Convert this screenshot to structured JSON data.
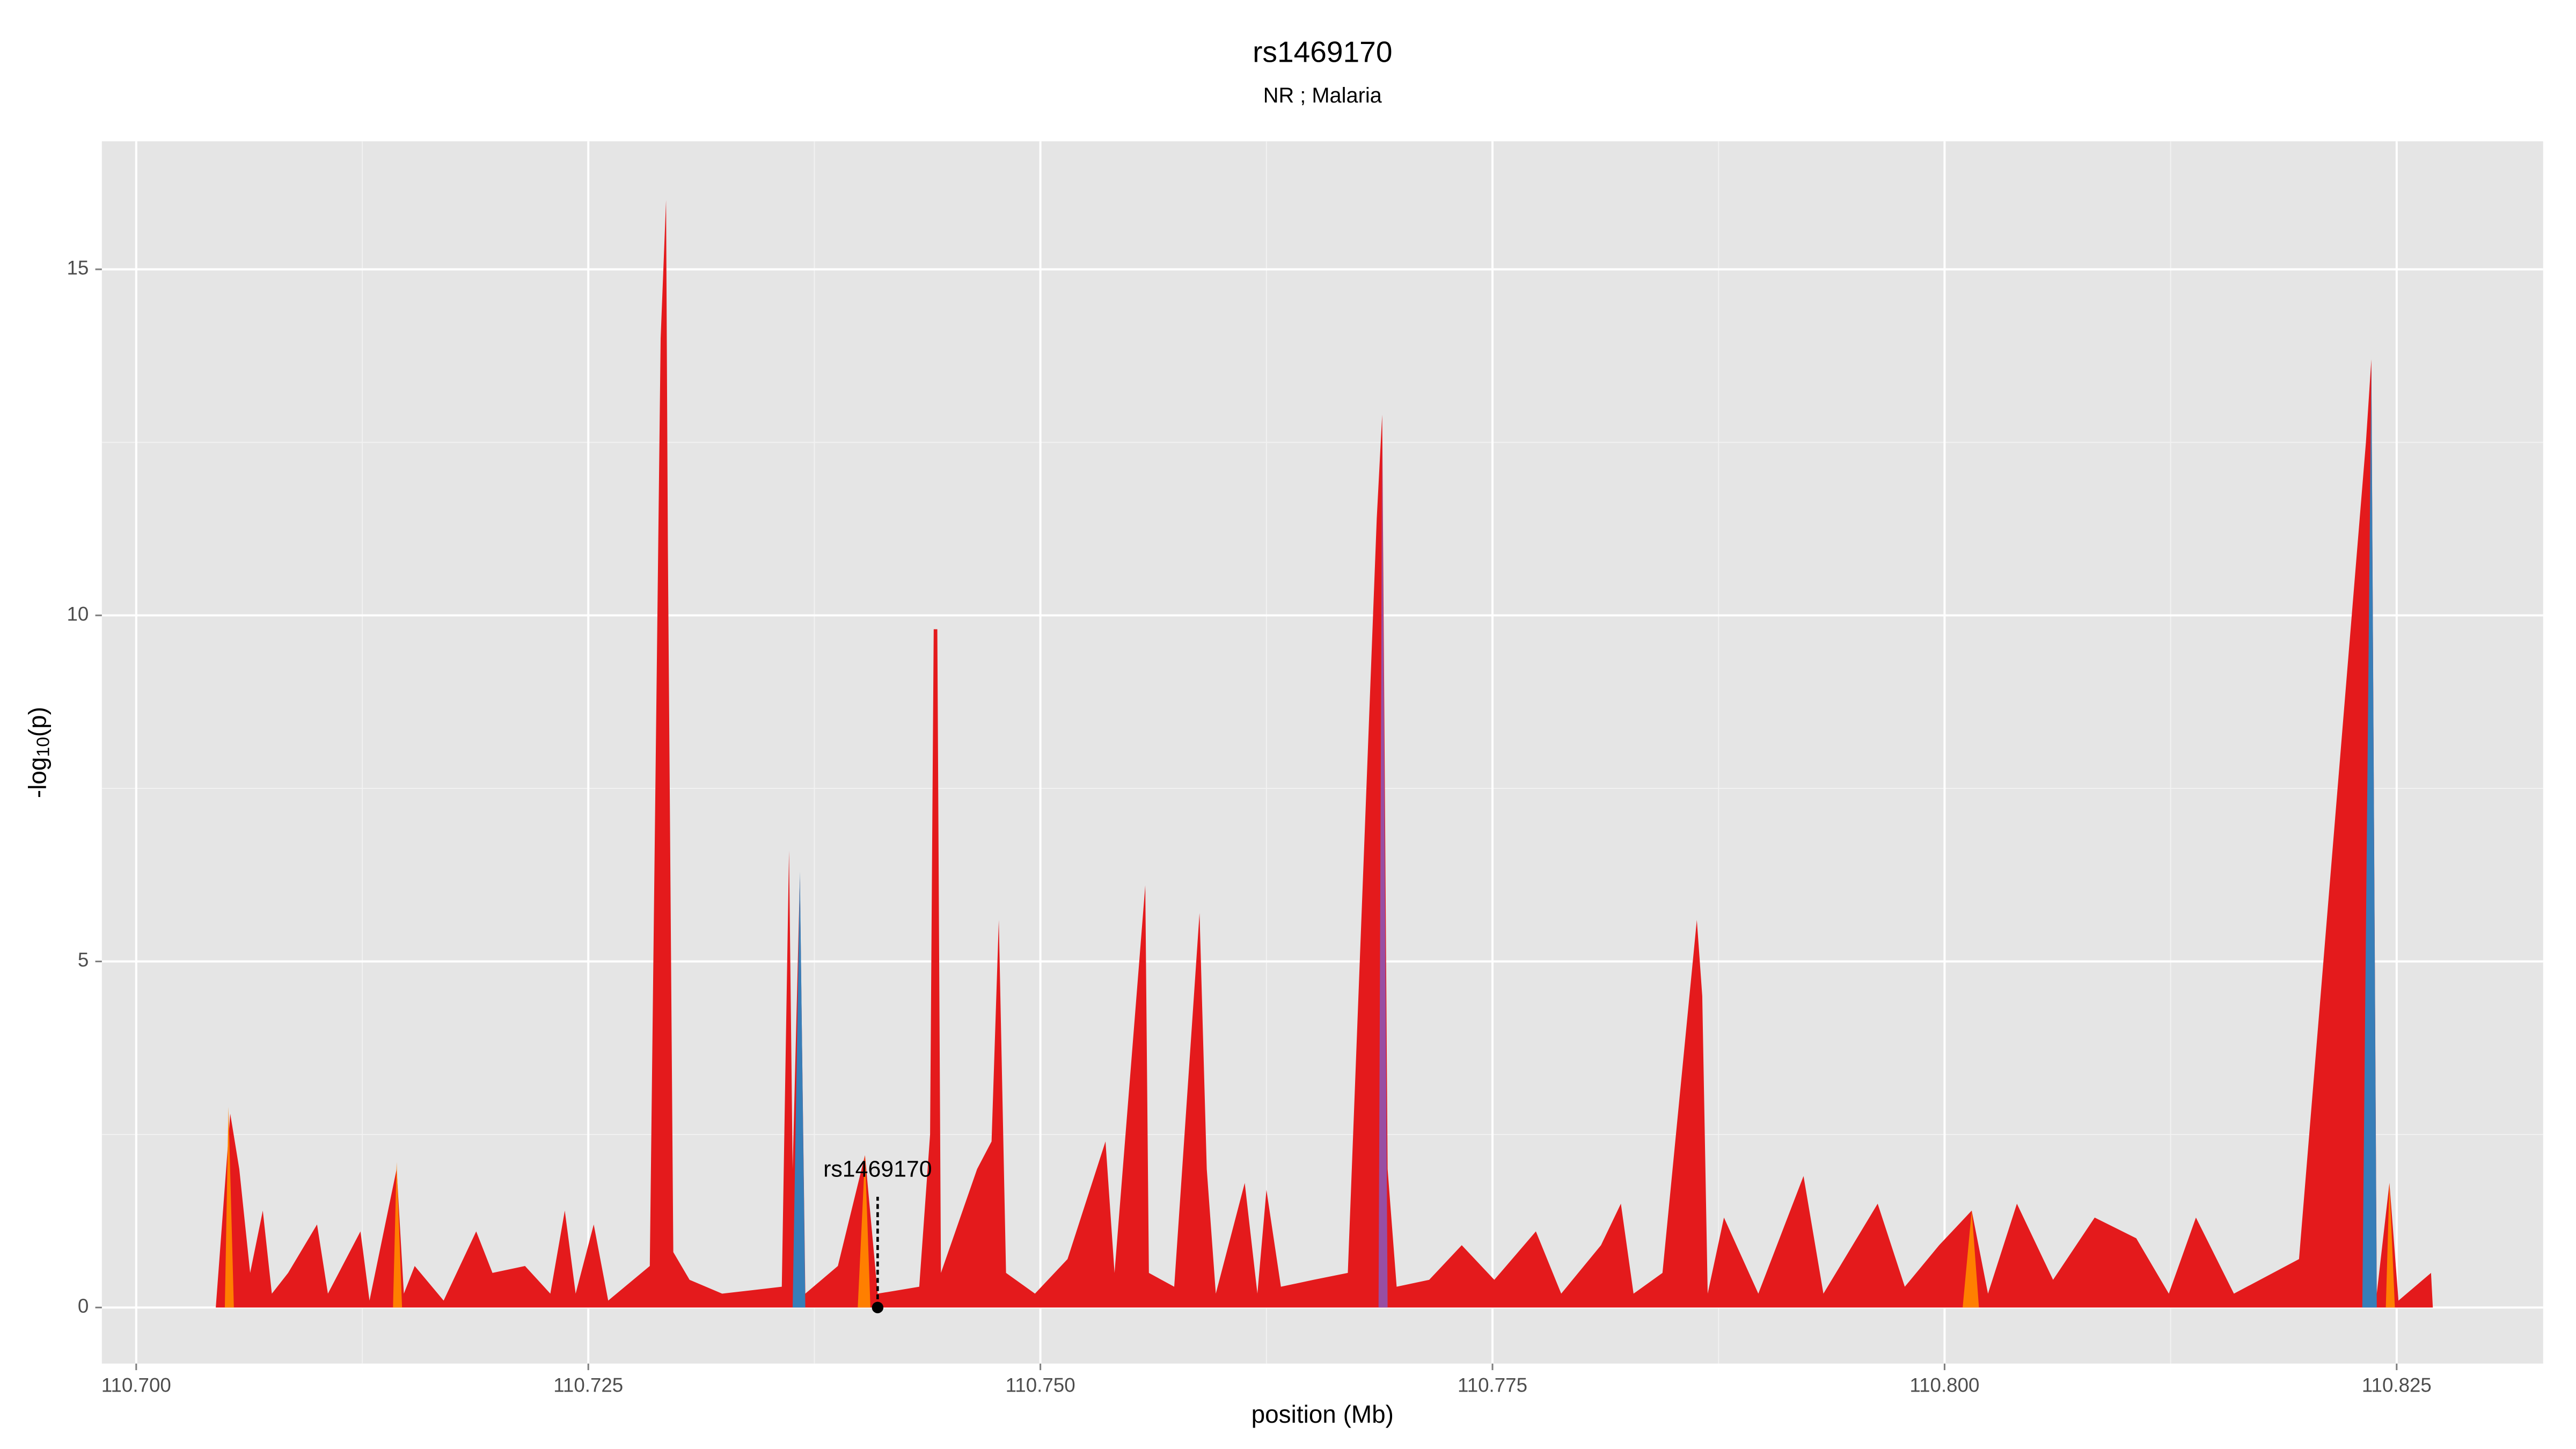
{
  "chart_data": {
    "type": "area",
    "title": "rs1469170",
    "subtitle": "NR ; Malaria",
    "xlabel": "position (Mb)",
    "ylabel": [
      "-log",
      "10",
      "(p)"
    ],
    "xlim": [
      110.6981,
      110.8331
    ],
    "ylim": [
      -0.81,
      16.85
    ],
    "xticks": [
      {
        "value": 110.7,
        "label": "110.700"
      },
      {
        "value": 110.725,
        "label": "110.725"
      },
      {
        "value": 110.75,
        "label": "110.750"
      },
      {
        "value": 110.775,
        "label": "110.775"
      },
      {
        "value": 110.8,
        "label": "110.800"
      },
      {
        "value": 110.825,
        "label": "110.825"
      }
    ],
    "yticks": [
      0,
      5,
      10,
      15
    ],
    "grid": true,
    "minor_grid": true,
    "series": [
      {
        "color": "#e41a1c",
        "x": [
          110.7044,
          110.7052,
          110.7057,
          110.7063,
          110.707,
          110.7075,
          110.7084,
          110.71,
          110.7106,
          110.7124,
          110.7129,
          110.7144,
          110.7148,
          110.7154,
          110.717,
          110.7188,
          110.7197,
          110.7215,
          110.7229,
          110.7237,
          110.7243,
          110.7253,
          110.7261,
          110.7284,
          110.729,
          110.7293,
          110.7294,
          110.7297,
          110.7306,
          110.7324,
          110.7357,
          110.7361,
          110.7363,
          110.7367,
          110.737,
          110.7388,
          110.7403,
          110.741,
          110.7433,
          110.7439,
          110.7441,
          110.7443,
          110.7445,
          110.7465,
          110.7473,
          110.7477,
          110.7481,
          110.7497,
          110.7515,
          110.7536,
          110.7541,
          110.7558,
          110.756,
          110.7574,
          110.7588,
          110.7592,
          110.7597,
          110.7613,
          110.762,
          110.7625,
          110.7633,
          110.7651,
          110.767,
          110.7686,
          110.7689,
          110.7692,
          110.7697,
          110.7715,
          110.7733,
          110.7751,
          110.7774,
          110.7788,
          110.781,
          110.7821,
          110.7828,
          110.7844,
          110.7863,
          110.7866,
          110.7869,
          110.7878,
          110.7897,
          110.7922,
          110.7933,
          110.7963,
          110.7978,
          110.7997,
          110.8015,
          110.8024,
          110.804,
          110.806,
          110.8083,
          110.8106,
          110.8124,
          110.8139,
          110.816,
          110.8196,
          110.8233,
          110.8236,
          110.8239,
          110.8246,
          110.8251,
          110.8269,
          110.827
        ],
        "values": [
          0,
          2.8,
          2.0,
          0.5,
          1.4,
          0.2,
          0.5,
          1.2,
          0.2,
          1.1,
          0.1,
          2.0,
          0.2,
          0.6,
          0.1,
          1.1,
          0.5,
          0.6,
          0.2,
          1.4,
          0.2,
          1.2,
          0.1,
          0.6,
          14.0,
          16.0,
          11.0,
          0.8,
          0.4,
          0.2,
          0.3,
          6.6,
          2.0,
          6.2,
          0.2,
          0.6,
          2.2,
          0.2,
          0.3,
          2.5,
          9.8,
          9.8,
          0.5,
          2.0,
          2.4,
          5.6,
          0.5,
          0.2,
          0.7,
          2.4,
          0.5,
          6.1,
          0.5,
          0.3,
          5.7,
          2.0,
          0.2,
          1.8,
          0.2,
          1.7,
          0.3,
          0.4,
          0.5,
          11.4,
          12.9,
          2.0,
          0.3,
          0.4,
          0.9,
          0.4,
          1.1,
          0.2,
          0.9,
          1.5,
          0.2,
          0.5,
          5.6,
          4.5,
          0.2,
          1.3,
          0.2,
          1.9,
          0.2,
          1.5,
          0.3,
          0.9,
          1.4,
          0.2,
          1.5,
          0.4,
          1.3,
          1.0,
          0.2,
          1.3,
          0.2,
          0.7,
          12.5,
          13.7,
          0.2,
          1.8,
          0.1,
          0.5,
          0
        ]
      },
      {
        "color": "#ff7f00",
        "x": [
          110.7049,
          110.7051,
          110.7054,
          110.7142,
          110.7144,
          110.7147,
          110.7399,
          110.7403,
          110.7406,
          110.801,
          110.8015,
          110.8019,
          110.8244,
          110.8246,
          110.8249
        ],
        "values": [
          0,
          2.9,
          0,
          0,
          2.1,
          0,
          0,
          2.2,
          0,
          0,
          1.4,
          0,
          0,
          1.8,
          0
        ]
      },
      {
        "color": "#377eb8",
        "x": [
          110.7363,
          110.7367,
          110.737,
          110.8231,
          110.8236,
          110.8239
        ],
        "values": [
          0,
          6.3,
          0,
          0,
          13.6,
          0
        ]
      },
      {
        "color": "#984ea3",
        "x": [
          110.7687,
          110.7689,
          110.7692
        ],
        "values": [
          0,
          12.5,
          0
        ]
      }
    ],
    "annotations": [
      {
        "text": "rs1469170",
        "x": 110.741,
        "y": 1.6
      }
    ]
  }
}
